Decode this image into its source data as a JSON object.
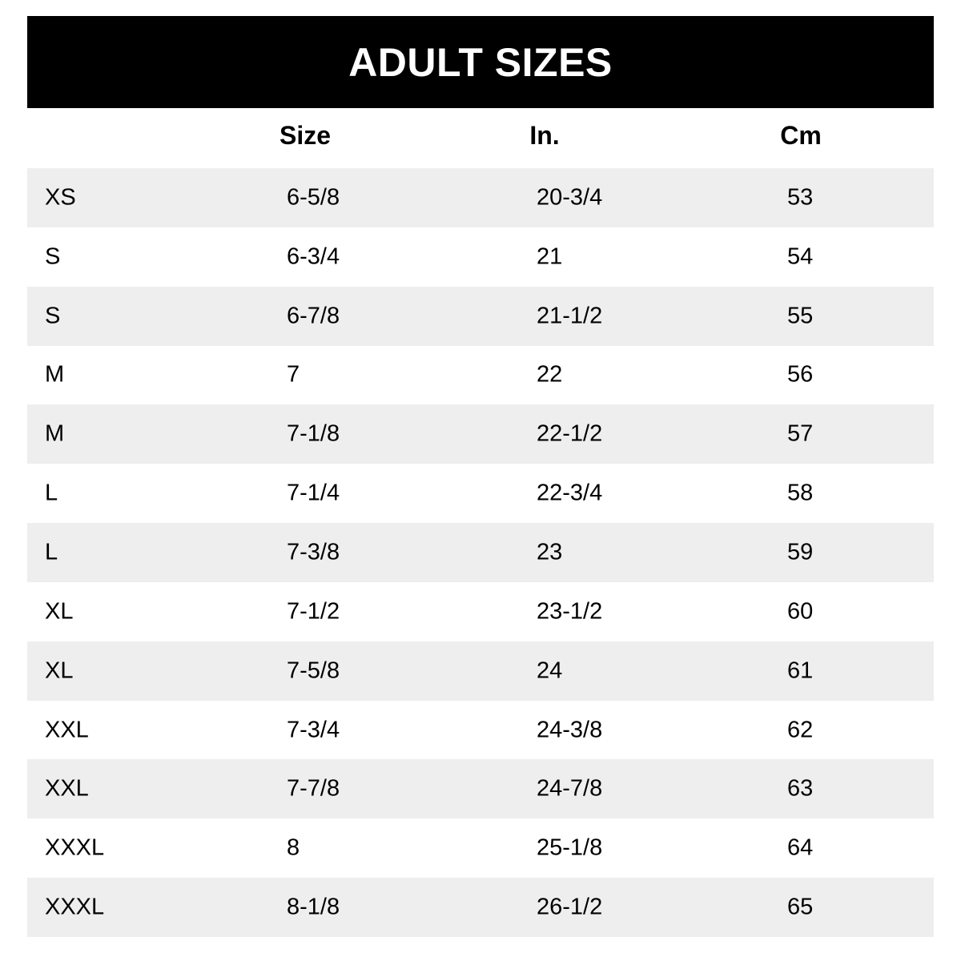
{
  "title": "ADULT SIZES",
  "columns": [
    "",
    "Size",
    "In.",
    "Cm"
  ],
  "rows": [
    [
      "XS",
      "6-5/8",
      "20-3/4",
      "53"
    ],
    [
      "S",
      "6-3/4",
      "21",
      "54"
    ],
    [
      "S",
      "6-7/8",
      "21-1/2",
      "55"
    ],
    [
      "M",
      "7",
      "22",
      "56"
    ],
    [
      "M",
      "7-1/8",
      "22-1/2",
      "57"
    ],
    [
      "L",
      "7-1/4",
      "22-3/4",
      "58"
    ],
    [
      "L",
      "7-3/8",
      "23",
      "59"
    ],
    [
      "XL",
      "7-1/2",
      "23-1/2",
      "60"
    ],
    [
      "XL",
      "7-5/8",
      "24",
      "61"
    ],
    [
      "XXL",
      "7-3/4",
      "24-3/8",
      "62"
    ],
    [
      "XXL",
      "7-7/8",
      "24-7/8",
      "63"
    ],
    [
      "XXXL",
      "8",
      "25-1/8",
      "64"
    ],
    [
      "XXXL",
      "8-1/8",
      "26-1/2",
      "65"
    ]
  ],
  "colors": {
    "banner": "#000000",
    "stripe": "#eeeeee"
  }
}
